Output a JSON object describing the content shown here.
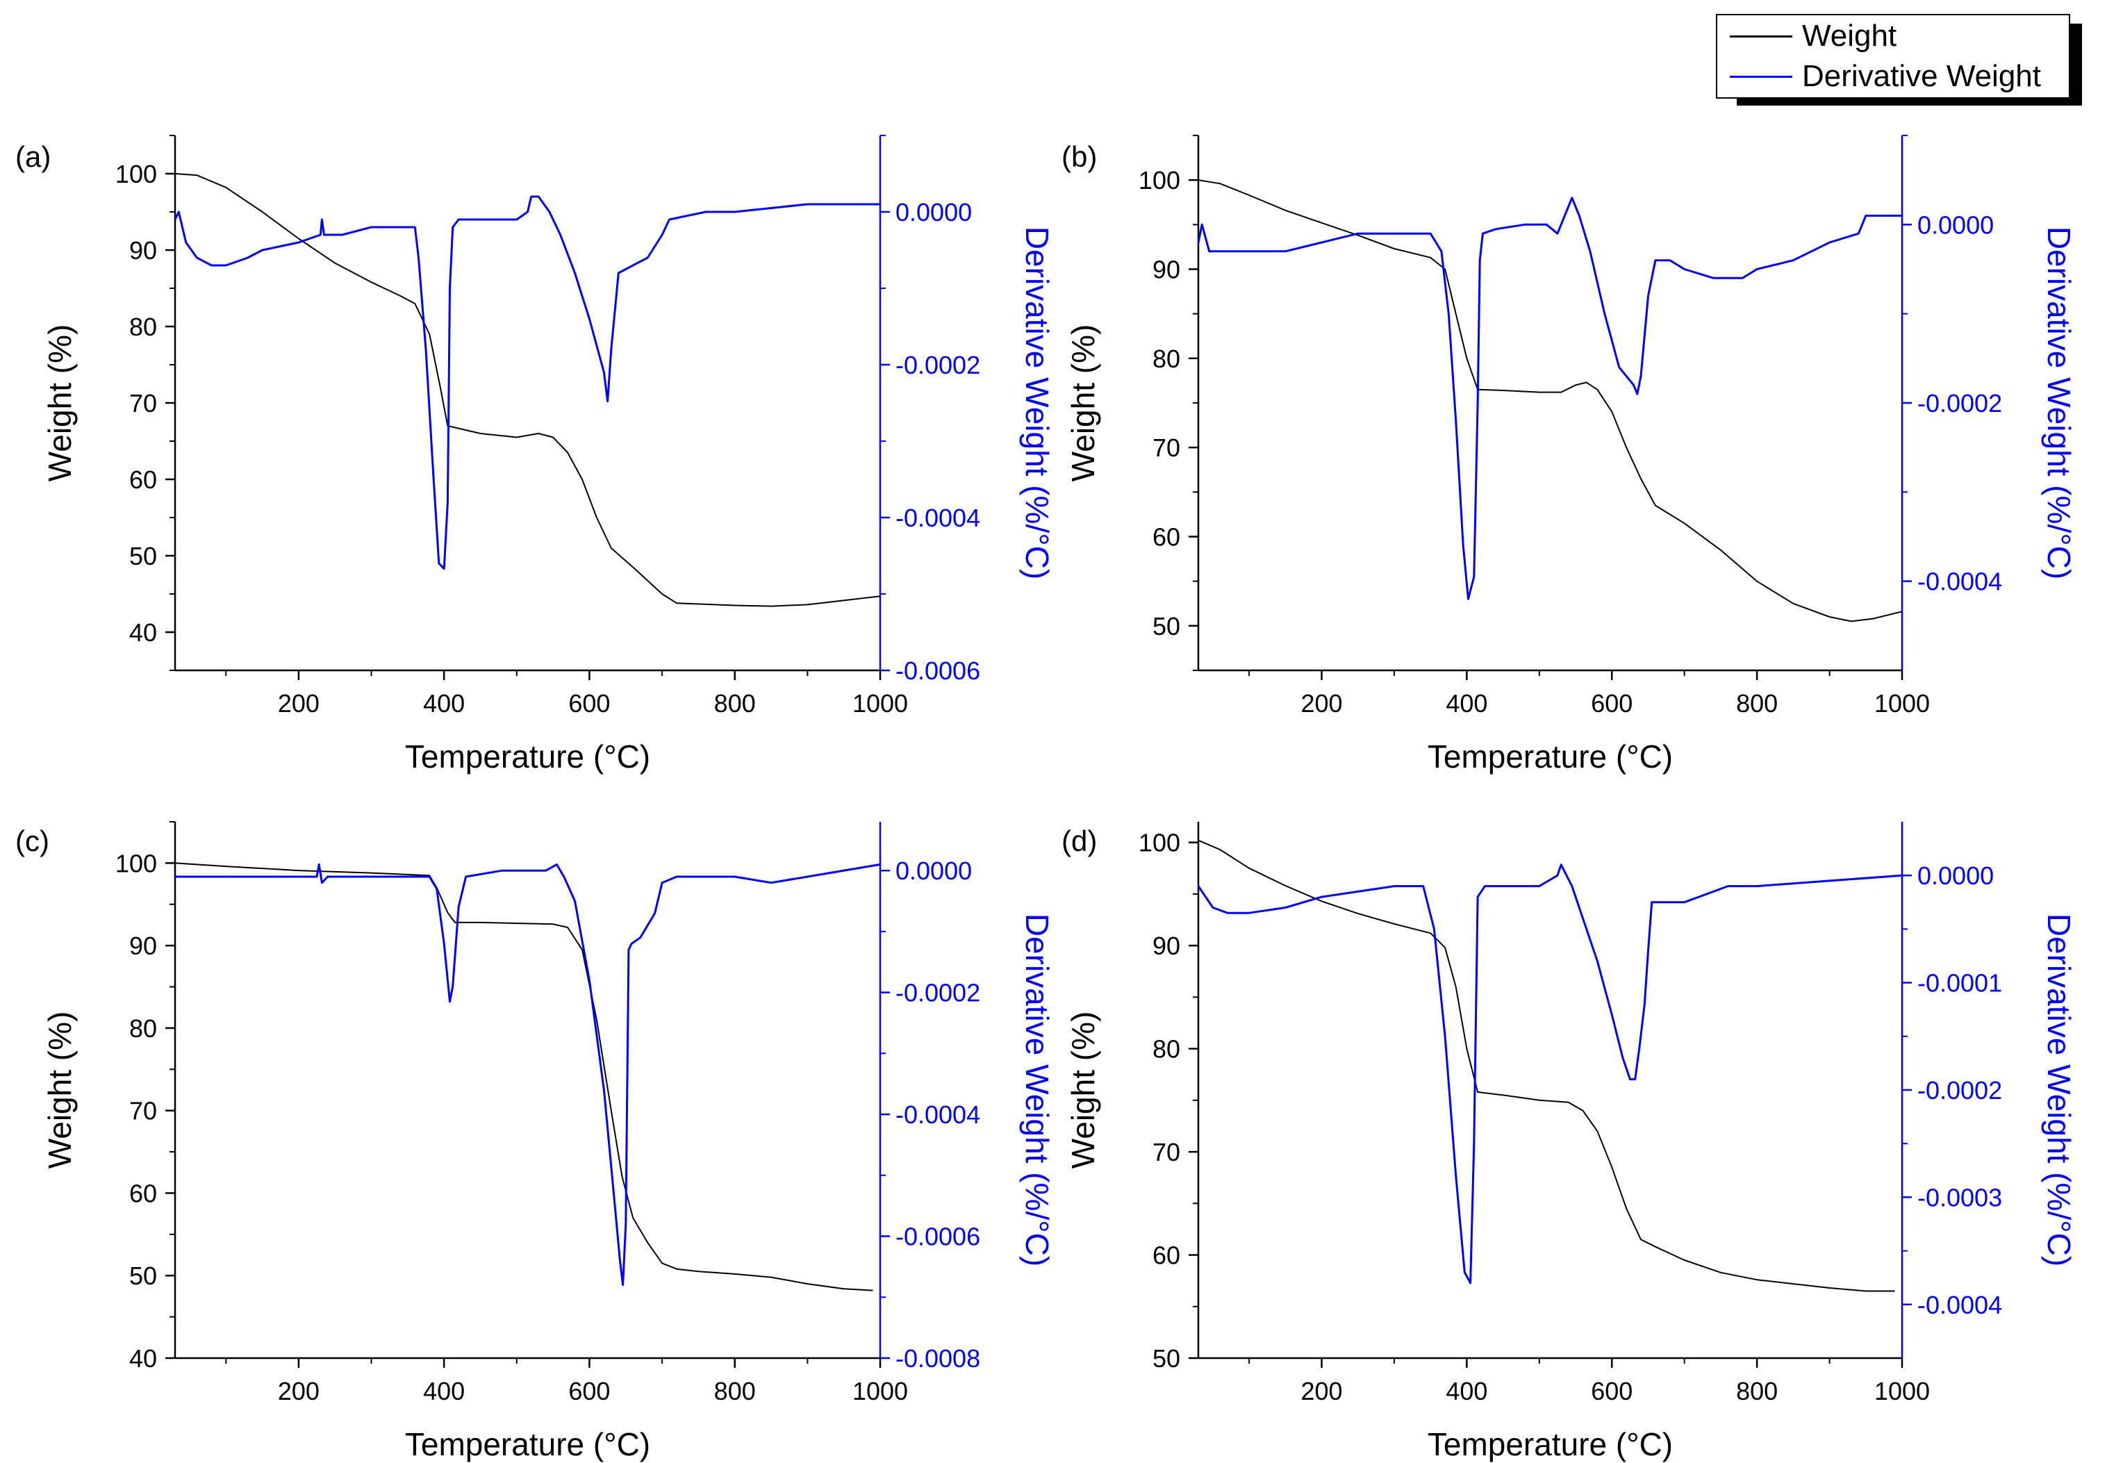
{
  "legend": {
    "items": [
      {
        "label": "Weight",
        "color": "#000000"
      },
      {
        "label": "Derivative Weight",
        "color": "#0000ff"
      }
    ]
  },
  "colors": {
    "weight": "#000000",
    "derivative": "#0000ff",
    "axis_left": "#000000",
    "axis_right": "#0000ff"
  },
  "chart_data": [
    {
      "panel": "(a)",
      "type": "line",
      "xlabel": "Temperature (°C)",
      "ylabel": "Weight (%)",
      "y2label": "Derivative Weight (%/°C)",
      "xlim": [
        30,
        1000
      ],
      "ylim": [
        35,
        105
      ],
      "y2lim": [
        -0.0006,
        0.0001
      ],
      "xticks": [
        200,
        400,
        600,
        800,
        1000
      ],
      "yticks": [
        40,
        50,
        60,
        70,
        80,
        90,
        100
      ],
      "y2ticks": [
        -0.0006,
        -0.0004,
        -0.0002,
        0.0
      ],
      "y2ticklabels": [
        "-0.0006",
        "-0.0004",
        "-0.0002",
        "0.0000"
      ],
      "series": [
        {
          "name": "Weight",
          "axis": "left",
          "x": [
            30,
            60,
            100,
            150,
            200,
            250,
            300,
            340,
            360,
            380,
            395,
            405,
            450,
            500,
            530,
            550,
            570,
            590,
            610,
            630,
            660,
            700,
            720,
            800,
            850,
            900,
            1000
          ],
          "y": [
            100,
            99.8,
            98.2,
            95,
            91.5,
            88.3,
            85.8,
            84,
            83,
            79,
            72,
            67,
            66,
            65.5,
            66,
            65.5,
            63.5,
            60,
            55,
            51,
            48.5,
            45,
            43.8,
            43.5,
            43.4,
            43.6,
            44.7
          ]
        },
        {
          "name": "Derivative Weight",
          "axis": "right",
          "x": [
            30,
            35,
            45,
            60,
            80,
            100,
            130,
            150,
            200,
            230,
            232,
            235,
            260,
            300,
            340,
            360,
            365,
            375,
            385,
            393,
            400,
            405,
            408,
            412,
            420,
            460,
            500,
            515,
            520,
            530,
            545,
            560,
            580,
            600,
            620,
            625,
            630,
            640,
            660,
            680,
            700,
            710,
            760,
            800,
            900,
            1000
          ],
          "y": [
            -1e-05,
            0.0,
            -4e-05,
            -6e-05,
            -7e-05,
            -7e-05,
            -6e-05,
            -5e-05,
            -4e-05,
            -3e-05,
            -1e-05,
            -3e-05,
            -3e-05,
            -2e-05,
            -2e-05,
            -2e-05,
            -6e-05,
            -0.00018,
            -0.00034,
            -0.00046,
            -0.000467,
            -0.00038,
            -0.0001,
            -2e-05,
            -1e-05,
            -1e-05,
            -1e-05,
            0.0,
            2e-05,
            2e-05,
            0.0,
            -3e-05,
            -8e-05,
            -0.00014,
            -0.00021,
            -0.000248,
            -0.00018,
            -8e-05,
            -7e-05,
            -6e-05,
            -3e-05,
            -1e-05,
            0.0,
            0.0,
            1e-05,
            1e-05
          ]
        }
      ]
    },
    {
      "panel": "(b)",
      "type": "line",
      "xlabel": "Temperature (°C)",
      "ylabel": "Weight (%)",
      "y2label": "Derivative Weight (%/°C)",
      "xlim": [
        30,
        1000
      ],
      "ylim": [
        45,
        105
      ],
      "y2lim": [
        -0.0005,
        0.0001
      ],
      "xticks": [
        200,
        400,
        600,
        800,
        1000
      ],
      "yticks": [
        50,
        60,
        70,
        80,
        90,
        100
      ],
      "y2ticks": [
        -0.0004,
        -0.0002,
        0.0
      ],
      "y2ticklabels": [
        "-0.0004",
        "-0.0002",
        "0.0000"
      ],
      "series": [
        {
          "name": "Weight",
          "axis": "left",
          "x": [
            30,
            60,
            100,
            150,
            200,
            250,
            300,
            350,
            370,
            385,
            400,
            415,
            450,
            500,
            530,
            550,
            565,
            580,
            600,
            620,
            640,
            660,
            700,
            750,
            800,
            850,
            900,
            930,
            960,
            1000
          ],
          "y": [
            100,
            99.6,
            98.3,
            96.6,
            95.2,
            93.8,
            92.3,
            91.3,
            90,
            85,
            80,
            76.5,
            76.4,
            76.2,
            76.2,
            77,
            77.3,
            76.5,
            74,
            70,
            66.5,
            63.5,
            61.5,
            58.5,
            55,
            52.5,
            51,
            50.5,
            50.8,
            51.6
          ]
        },
        {
          "name": "Derivative Weight",
          "axis": "right",
          "x": [
            30,
            35,
            45,
            60,
            80,
            100,
            150,
            200,
            250,
            300,
            350,
            365,
            375,
            385,
            395,
            402,
            410,
            415,
            418,
            422,
            440,
            480,
            510,
            525,
            540,
            545,
            555,
            570,
            590,
            610,
            630,
            635,
            640,
            650,
            660,
            680,
            700,
            740,
            780,
            800,
            850,
            900,
            940,
            950,
            1000
          ],
          "y": [
            -2e-05,
            0.0,
            -3e-05,
            -3e-05,
            -3e-05,
            -3e-05,
            -3e-05,
            -2e-05,
            -1e-05,
            -1e-05,
            -1e-05,
            -3e-05,
            -0.0001,
            -0.00022,
            -0.00036,
            -0.00042,
            -0.000395,
            -0.0002,
            -4e-05,
            -1e-05,
            -5e-06,
            0.0,
            0.0,
            -1e-05,
            2e-05,
            3e-05,
            1e-05,
            -3e-05,
            -0.0001,
            -0.00016,
            -0.00018,
            -0.00019,
            -0.00017,
            -8e-05,
            -4e-05,
            -4e-05,
            -5e-05,
            -6e-05,
            -6e-05,
            -5e-05,
            -4e-05,
            -2e-05,
            -1e-05,
            1e-05,
            1e-05
          ]
        }
      ]
    },
    {
      "panel": "(c)",
      "type": "line",
      "xlabel": "Temperature (°C)",
      "ylabel": "Weight (%)",
      "y2label": "Derivative Weight (%/°C)",
      "xlim": [
        30,
        1000
      ],
      "ylim": [
        40,
        105
      ],
      "y2lim": [
        -0.0008,
        8e-05
      ],
      "xticks": [
        200,
        400,
        600,
        800,
        1000
      ],
      "yticks": [
        40,
        50,
        60,
        70,
        80,
        90,
        100
      ],
      "y2ticks": [
        -0.0008,
        -0.0006,
        -0.0004,
        -0.0002,
        0.0
      ],
      "y2ticklabels": [
        "-0.0008",
        "-0.0006",
        "-0.0004",
        "-0.0002",
        "0.0000"
      ],
      "series": [
        {
          "name": "Weight",
          "axis": "left",
          "x": [
            30,
            100,
            200,
            300,
            380,
            390,
            405,
            415,
            450,
            500,
            550,
            570,
            590,
            610,
            630,
            645,
            660,
            680,
            700,
            720,
            750,
            800,
            850,
            900,
            950,
            990
          ],
          "y": [
            100,
            99.6,
            99.1,
            98.8,
            98.5,
            97,
            94,
            92.8,
            92.8,
            92.7,
            92.6,
            92.2,
            89.5,
            81,
            70,
            62,
            57,
            54,
            51.5,
            50.8,
            50.5,
            50.2,
            49.8,
            49,
            48.4,
            48.2
          ]
        },
        {
          "name": "Derivative Weight",
          "axis": "right",
          "x": [
            30,
            100,
            150,
            200,
            225,
            228,
            232,
            240,
            300,
            380,
            390,
            400,
            408,
            412,
            420,
            430,
            480,
            500,
            540,
            555,
            565,
            580,
            600,
            620,
            635,
            642,
            646,
            650,
            654,
            658,
            670,
            690,
            700,
            720,
            800,
            850,
            900,
            1000
          ],
          "y": [
            -1e-05,
            -1e-05,
            -1e-05,
            -1e-05,
            -1e-05,
            1e-05,
            -2e-05,
            -1e-05,
            -1e-05,
            -1e-05,
            -3e-05,
            -0.00012,
            -0.000215,
            -0.00019,
            -6e-05,
            -1e-05,
            0.0,
            0.0,
            0.0,
            1e-05,
            -1e-05,
            -5e-05,
            -0.00018,
            -0.00036,
            -0.00055,
            -0.00064,
            -0.00068,
            -0.00058,
            -0.00013,
            -0.00012,
            -0.00011,
            -7e-05,
            -2e-05,
            -1e-05,
            -1e-05,
            -2e-05,
            -1e-05,
            1e-05
          ]
        }
      ]
    },
    {
      "panel": "(d)",
      "type": "line",
      "xlabel": "Temperature (°C)",
      "ylabel": "Weight (%)",
      "y2label": "Derivative Weight (%/°C)",
      "xlim": [
        30,
        1000
      ],
      "ylim": [
        50,
        102
      ],
      "y2lim": [
        -0.00045,
        5e-05
      ],
      "xticks": [
        200,
        400,
        600,
        800,
        1000
      ],
      "yticks": [
        50,
        60,
        70,
        80,
        90,
        100
      ],
      "y2ticks": [
        -0.0004,
        -0.0003,
        -0.0002,
        -0.0001,
        0.0
      ],
      "y2ticklabels": [
        "-0.0004",
        "-0.0003",
        "-0.0002",
        "-0.0001",
        "0.0000"
      ],
      "series": [
        {
          "name": "Weight",
          "axis": "left",
          "x": [
            30,
            60,
            100,
            150,
            200,
            250,
            300,
            350,
            370,
            385,
            400,
            415,
            450,
            500,
            540,
            560,
            580,
            600,
            620,
            640,
            660,
            700,
            750,
            800,
            850,
            900,
            950,
            990
          ],
          "y": [
            100.2,
            99.3,
            97.5,
            95.8,
            94.3,
            93.1,
            92.1,
            91.2,
            89.8,
            86,
            80,
            75.8,
            75.5,
            75,
            74.8,
            74,
            72,
            68.5,
            64.5,
            61.5,
            60.8,
            59.5,
            58.3,
            57.6,
            57.2,
            56.8,
            56.5,
            56.5
          ]
        },
        {
          "name": "Derivative Weight",
          "axis": "right",
          "x": [
            30,
            50,
            70,
            100,
            150,
            200,
            250,
            300,
            340,
            355,
            370,
            385,
            397,
            405,
            410,
            415,
            425,
            450,
            500,
            525,
            530,
            545,
            560,
            580,
            600,
            615,
            625,
            632,
            638,
            645,
            650,
            655,
            660,
            700,
            760,
            800,
            900,
            1000
          ],
          "y": [
            -1e-05,
            -3e-05,
            -3.5e-05,
            -3.5e-05,
            -3e-05,
            -2e-05,
            -1.5e-05,
            -1e-05,
            -1e-05,
            -5e-05,
            -0.00015,
            -0.00028,
            -0.00037,
            -0.00038,
            -0.00025,
            -2e-05,
            -1e-05,
            -1e-05,
            -1e-05,
            0.0,
            1e-05,
            -1e-05,
            -4e-05,
            -8e-05,
            -0.00013,
            -0.00017,
            -0.00019,
            -0.00019,
            -0.00016,
            -0.00012,
            -7e-05,
            -2.5e-05,
            -2.5e-05,
            -2.5e-05,
            -1e-05,
            -1e-05,
            -5e-06,
            0.0
          ]
        }
      ]
    }
  ]
}
